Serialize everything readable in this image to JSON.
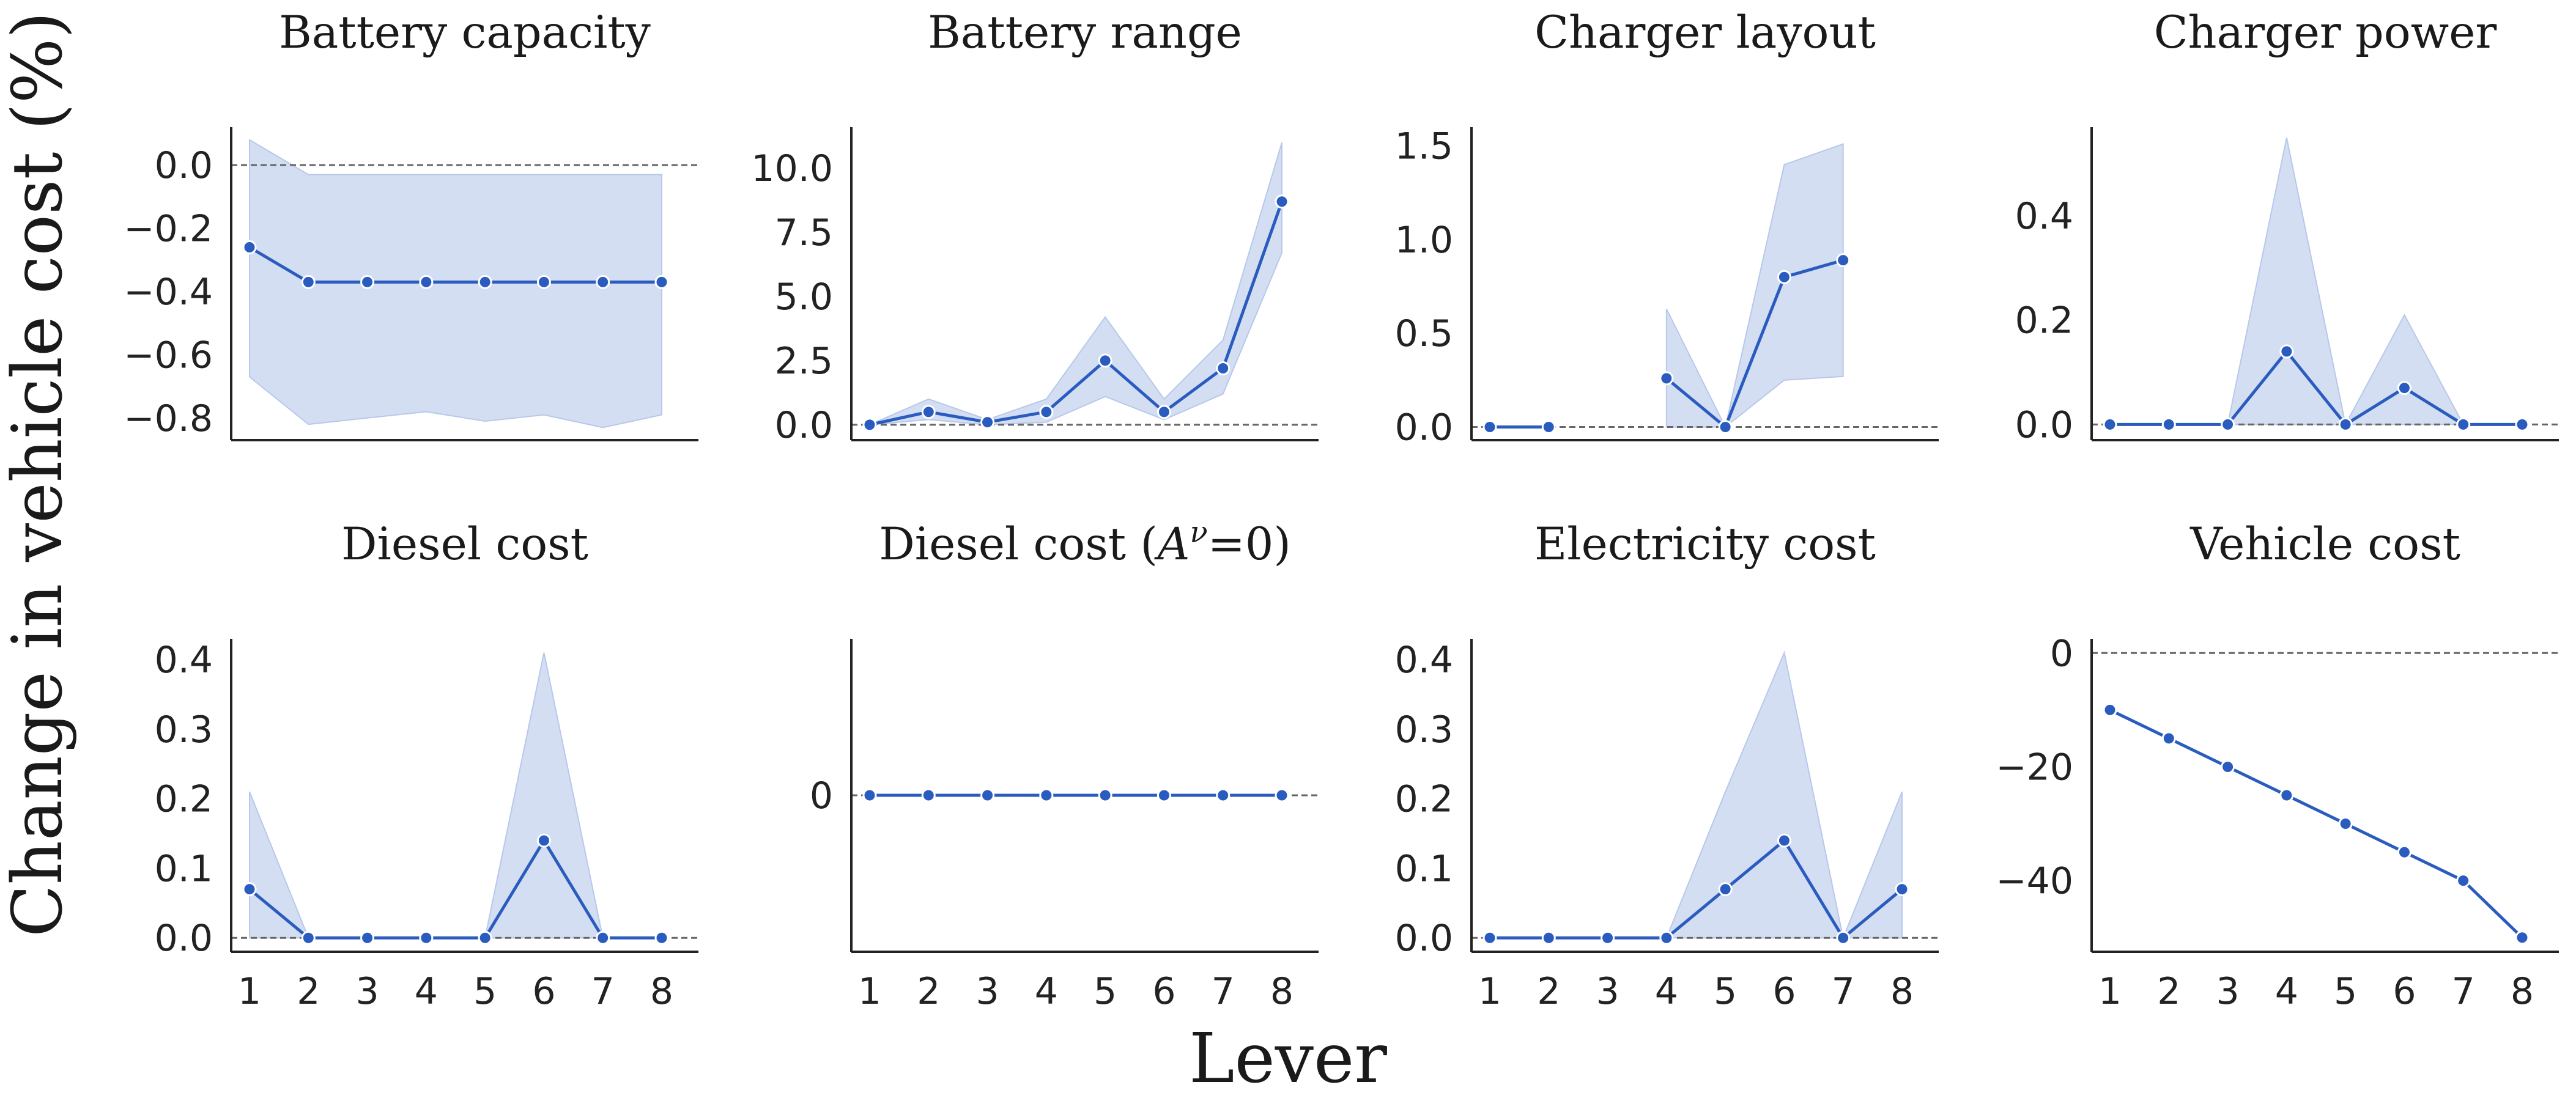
{
  "figure": {
    "ylabel": "Change in vehicle cost (%)",
    "xlabel": "Lever",
    "colors": {
      "line": "#2a5cbf",
      "band": "#c9d6f0",
      "band_edge": "#b7c8ea",
      "zero_line": "#666666",
      "axis": "#222222"
    }
  },
  "chart_data": [
    {
      "type": "line",
      "title": "Battery capacity",
      "title_sup": "",
      "title_suffix": "",
      "x": [
        1,
        2,
        3,
        4,
        5,
        6,
        7,
        8
      ],
      "values": [
        -0.26,
        -0.37,
        -0.37,
        -0.37,
        -0.37,
        -0.37,
        -0.37,
        -0.37
      ],
      "lower": [
        -0.67,
        -0.82,
        -0.8,
        -0.78,
        -0.81,
        -0.79,
        -0.83,
        -0.79
      ],
      "upper": [
        0.08,
        -0.03,
        -0.03,
        -0.03,
        -0.03,
        -0.03,
        -0.03,
        -0.03
      ],
      "ylim": [
        -0.87,
        0.12
      ],
      "yticks": [
        0.0,
        -0.2,
        -0.4,
        -0.6,
        -0.8
      ],
      "ytick_labels": [
        "0.0",
        "−0.2",
        "−0.4",
        "−0.6",
        "−0.8"
      ],
      "show_xticks": false
    },
    {
      "type": "line",
      "title": "Battery range",
      "title_sup": "",
      "title_suffix": "",
      "x": [
        1,
        2,
        3,
        4,
        5,
        6,
        7,
        8
      ],
      "values": [
        0.0,
        0.5,
        0.1,
        0.5,
        2.5,
        0.5,
        2.2,
        8.7
      ],
      "lower": [
        0.0,
        0.2,
        0.0,
        0.1,
        1.1,
        0.2,
        1.2,
        6.7
      ],
      "upper": [
        0.0,
        1.0,
        0.2,
        1.0,
        4.2,
        1.0,
        3.3,
        11.0
      ],
      "ylim": [
        -0.6,
        11.6
      ],
      "yticks": [
        0.0,
        2.5,
        5.0,
        7.5,
        10.0
      ],
      "ytick_labels": [
        "0.0",
        "2.5",
        "5.0",
        "7.5",
        "10.0"
      ],
      "show_xticks": false
    },
    {
      "type": "line",
      "title": "Charger layout",
      "title_sup": "",
      "title_suffix": "",
      "x": [
        1,
        2,
        3,
        4,
        5,
        6,
        7,
        8
      ],
      "values": [
        0.0,
        0.0,
        null,
        0.26,
        0.0,
        0.8,
        0.89,
        null
      ],
      "lower": [
        0.0,
        0.0,
        null,
        0.0,
        0.0,
        0.25,
        0.27,
        null
      ],
      "upper": [
        0.0,
        0.0,
        null,
        0.63,
        0.0,
        1.4,
        1.51,
        null
      ],
      "ylim": [
        -0.07,
        1.6
      ],
      "yticks": [
        0.0,
        0.5,
        1.0,
        1.5
      ],
      "ytick_labels": [
        "0.0",
        "0.5",
        "1.0",
        "1.5"
      ],
      "show_xticks": false
    },
    {
      "type": "line",
      "title": "Charger power",
      "title_sup": "",
      "title_suffix": "",
      "x": [
        1,
        2,
        3,
        4,
        5,
        6,
        7,
        8
      ],
      "values": [
        0.0,
        0.0,
        0.0,
        0.14,
        0.0,
        0.07,
        0.0,
        0.0
      ],
      "lower": [
        0.0,
        0.0,
        0.0,
        0.0,
        0.0,
        0.0,
        0.0,
        0.0
      ],
      "upper": [
        0.0,
        0.0,
        0.0,
        0.55,
        0.0,
        0.21,
        0.0,
        0.0
      ],
      "ylim": [
        -0.03,
        0.57
      ],
      "yticks": [
        0.0,
        0.2,
        0.4
      ],
      "ytick_labels": [
        "0.0",
        "0.2",
        "0.4"
      ],
      "show_xticks": false
    },
    {
      "type": "line",
      "title": "Diesel cost",
      "title_sup": "",
      "title_suffix": "",
      "x": [
        1,
        2,
        3,
        4,
        5,
        6,
        7,
        8
      ],
      "values": [
        0.07,
        0.0,
        0.0,
        0.0,
        0.0,
        0.14,
        0.0,
        0.0
      ],
      "lower": [
        0.0,
        0.0,
        0.0,
        0.0,
        0.0,
        0.0,
        0.0,
        0.0
      ],
      "upper": [
        0.21,
        0.0,
        0.0,
        0.0,
        0.0,
        0.41,
        0.0,
        0.0
      ],
      "ylim": [
        -0.02,
        0.43
      ],
      "yticks": [
        0.0,
        0.1,
        0.2,
        0.3,
        0.4
      ],
      "ytick_labels": [
        "0.0",
        "0.1",
        "0.2",
        "0.3",
        "0.4"
      ],
      "show_xticks": true
    },
    {
      "type": "line",
      "title": "Diesel cost (",
      "title_sup": "ν",
      "title_suffix": "=0)",
      "x": [
        1,
        2,
        3,
        4,
        5,
        6,
        7,
        8
      ],
      "values": [
        0,
        0,
        0,
        0,
        0,
        0,
        0,
        0
      ],
      "lower": [
        0,
        0,
        0,
        0,
        0,
        0,
        0,
        0
      ],
      "upper": [
        0,
        0,
        0,
        0,
        0,
        0,
        0,
        0
      ],
      "ylim": [
        -1,
        1
      ],
      "yticks": [
        0
      ],
      "ytick_labels": [
        "0"
      ],
      "show_xticks": true
    },
    {
      "type": "line",
      "title": "Electricity cost",
      "title_sup": "",
      "title_suffix": "",
      "x": [
        1,
        2,
        3,
        4,
        5,
        6,
        7,
        8
      ],
      "values": [
        0.0,
        0.0,
        0.0,
        0.0,
        0.07,
        0.14,
        0.0,
        0.07
      ],
      "lower": [
        0.0,
        0.0,
        0.0,
        0.0,
        0.0,
        0.0,
        0.0,
        0.0
      ],
      "upper": [
        0.0,
        0.0,
        0.0,
        0.0,
        0.21,
        0.41,
        0.0,
        0.21
      ],
      "ylim": [
        -0.02,
        0.43
      ],
      "yticks": [
        0.0,
        0.1,
        0.2,
        0.3,
        0.4
      ],
      "ytick_labels": [
        "0.0",
        "0.1",
        "0.2",
        "0.3",
        "0.4"
      ],
      "show_xticks": true
    },
    {
      "type": "line",
      "title": "Vehicle cost",
      "title_sup": "",
      "title_suffix": "",
      "x": [
        1,
        2,
        3,
        4,
        5,
        6,
        7,
        8
      ],
      "values": [
        -10,
        -15,
        -20,
        -25,
        -30,
        -35,
        -40,
        -50
      ],
      "lower": [
        -10,
        -15,
        -20,
        -25,
        -30,
        -35,
        -40,
        -50
      ],
      "upper": [
        -10,
        -15,
        -20,
        -25,
        -30,
        -35,
        -40,
        -50
      ],
      "ylim": [
        -52.5,
        2.5
      ],
      "yticks": [
        0,
        -20,
        -40
      ],
      "ytick_labels": [
        "0",
        "−20",
        "−40"
      ],
      "show_xticks": true
    }
  ]
}
